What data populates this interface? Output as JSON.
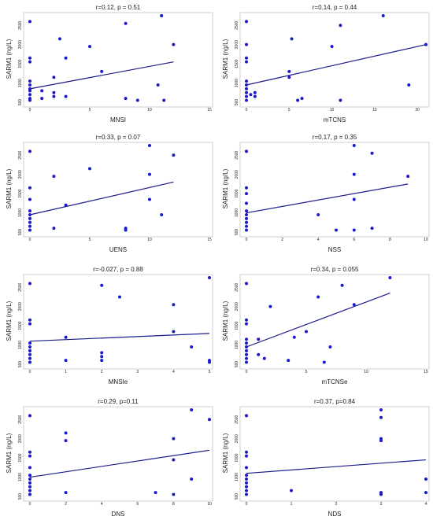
{
  "colors": {
    "points": "#1a1acc",
    "fit_line": "#1a1a8c",
    "axis": "#cfcfcf",
    "text": "#222222"
  },
  "chart_data": [
    {
      "type": "scatter",
      "title": "r=0.12, p = 0.51",
      "xlabel": "MNSI",
      "ylabel": "SARM1 (ng/L)",
      "xlim": [
        0,
        15
      ],
      "ylim": [
        500,
        2750
      ],
      "xticks": [
        0,
        5,
        10,
        15
      ],
      "yticks": [
        500,
        1000,
        1500,
        2000,
        2500
      ],
      "points": [
        [
          0,
          2600
        ],
        [
          0,
          1650
        ],
        [
          0,
          1550
        ],
        [
          0,
          1050
        ],
        [
          0,
          950
        ],
        [
          0,
          850
        ],
        [
          0,
          800
        ],
        [
          0,
          700
        ],
        [
          0,
          600
        ],
        [
          0,
          550
        ],
        [
          1,
          800
        ],
        [
          1,
          600
        ],
        [
          2,
          750
        ],
        [
          2,
          1150
        ],
        [
          2,
          650
        ],
        [
          2.5,
          2150
        ],
        [
          3,
          1650
        ],
        [
          3,
          650
        ],
        [
          5,
          1950
        ],
        [
          6,
          1300
        ],
        [
          8,
          2550
        ],
        [
          8,
          600
        ],
        [
          9,
          550
        ],
        [
          10.7,
          950
        ],
        [
          11,
          2750
        ],
        [
          11.2,
          550
        ],
        [
          12,
          2000
        ]
      ],
      "fit": [
        [
          0,
          850
        ],
        [
          12,
          1550
        ]
      ]
    },
    {
      "type": "scatter",
      "title": "r=0.14, p = 0.44",
      "xlabel": "mTCNS",
      "ylabel": "SARM1 (ng/L)",
      "xlim": [
        0,
        21
      ],
      "ylim": [
        500,
        2750
      ],
      "xticks": [
        0,
        5,
        10,
        15,
        20
      ],
      "yticks": [
        500,
        1000,
        1500,
        2000,
        2500
      ],
      "points": [
        [
          0,
          2600
        ],
        [
          0,
          2000
        ],
        [
          0,
          1650
        ],
        [
          0,
          1550
        ],
        [
          0,
          1050
        ],
        [
          0,
          950
        ],
        [
          0,
          850
        ],
        [
          0,
          750
        ],
        [
          0,
          650
        ],
        [
          0,
          550
        ],
        [
          0.5,
          700
        ],
        [
          1,
          650
        ],
        [
          1,
          750
        ],
        [
          5,
          1300
        ],
        [
          5,
          1150
        ],
        [
          5.3,
          2150
        ],
        [
          6,
          550
        ],
        [
          6.5,
          600
        ],
        [
          10,
          1950
        ],
        [
          11,
          2500
        ],
        [
          11,
          550
        ],
        [
          16,
          2750
        ],
        [
          19,
          950
        ],
        [
          21,
          2000
        ]
      ],
      "fit": [
        [
          0,
          950
        ],
        [
          21,
          2000
        ]
      ]
    },
    {
      "type": "scatter",
      "title": "r=0.33, p = 0.07",
      "xlabel": "UENS",
      "ylabel": "SARM1 (ng/L)",
      "xlim": [
        0,
        15
      ],
      "ylim": [
        500,
        2750
      ],
      "xticks": [
        0,
        5,
        10,
        15
      ],
      "yticks": [
        500,
        1000,
        1500,
        2000,
        2500
      ],
      "points": [
        [
          0,
          2600
        ],
        [
          0,
          1650
        ],
        [
          0,
          1350
        ],
        [
          0,
          1050
        ],
        [
          0,
          950
        ],
        [
          0,
          850
        ],
        [
          0,
          750
        ],
        [
          0,
          650
        ],
        [
          0,
          550
        ],
        [
          2,
          1950
        ],
        [
          2,
          600
        ],
        [
          3,
          1200
        ],
        [
          5,
          2150
        ],
        [
          8,
          550
        ],
        [
          8,
          600
        ],
        [
          10,
          2750
        ],
        [
          10,
          2000
        ],
        [
          10,
          1350
        ],
        [
          11,
          950
        ],
        [
          12,
          2500
        ]
      ],
      "fit": [
        [
          0,
          950
        ],
        [
          12,
          1800
        ]
      ]
    },
    {
      "type": "scatter",
      "title": "r=0.17, p = 0.35",
      "xlabel": "NSS",
      "ylabel": "SARM1 (ng/L)",
      "xlim": [
        0,
        10
      ],
      "ylim": [
        500,
        2750
      ],
      "xticks": [
        0,
        2,
        4,
        6,
        8,
        10
      ],
      "yticks": [
        500,
        1000,
        1500,
        2000,
        2500
      ],
      "points": [
        [
          0,
          2600
        ],
        [
          0,
          1650
        ],
        [
          0,
          1500
        ],
        [
          0,
          1250
        ],
        [
          0,
          1050
        ],
        [
          0,
          950
        ],
        [
          0,
          850
        ],
        [
          0,
          750
        ],
        [
          0,
          650
        ],
        [
          0,
          550
        ],
        [
          4,
          950
        ],
        [
          5,
          550
        ],
        [
          6,
          2750
        ],
        [
          6,
          2000
        ],
        [
          6,
          1350
        ],
        [
          6,
          550
        ],
        [
          7,
          2550
        ],
        [
          7,
          600
        ],
        [
          9,
          1950
        ]
      ],
      "fit": [
        [
          0,
          1000
        ],
        [
          9,
          1750
        ]
      ]
    },
    {
      "type": "scatter",
      "title": "r=-0.027, p = 0.88",
      "xlabel": "MNSIe",
      "ylabel": "SARM1 (ng/L)",
      "xlim": [
        0,
        5
      ],
      "ylim": [
        500,
        2750
      ],
      "xticks": [
        0,
        1,
        2,
        3,
        4,
        5
      ],
      "yticks": [
        500,
        1000,
        1500,
        2000,
        2500
      ],
      "points": [
        [
          0,
          2600
        ],
        [
          0,
          1650
        ],
        [
          0,
          1550
        ],
        [
          0,
          1050
        ],
        [
          0,
          950
        ],
        [
          0,
          850
        ],
        [
          0,
          750
        ],
        [
          0,
          650
        ],
        [
          0,
          550
        ],
        [
          1,
          1200
        ],
        [
          1,
          600
        ],
        [
          2,
          2550
        ],
        [
          2,
          800
        ],
        [
          2,
          700
        ],
        [
          2,
          600
        ],
        [
          2.5,
          2250
        ],
        [
          4,
          2050
        ],
        [
          4,
          1350
        ],
        [
          4.5,
          950
        ],
        [
          5,
          2750
        ],
        [
          5,
          600
        ],
        [
          5,
          550
        ]
      ],
      "fit": [
        [
          0,
          1100
        ],
        [
          5,
          1300
        ]
      ]
    },
    {
      "type": "scatter",
      "title": "r=0.34, p = 0.055",
      "xlabel": "mTCNSe",
      "ylabel": "SARM1 (ng/L)",
      "xlim": [
        0,
        15
      ],
      "ylim": [
        500,
        2750
      ],
      "xticks": [
        0,
        5,
        10,
        15
      ],
      "yticks": [
        500,
        1000,
        1500,
        2000,
        2500
      ],
      "points": [
        [
          0,
          2600
        ],
        [
          0,
          1650
        ],
        [
          0,
          1550
        ],
        [
          0,
          1150
        ],
        [
          0,
          1050
        ],
        [
          0,
          950
        ],
        [
          0,
          850
        ],
        [
          0,
          750
        ],
        [
          0,
          650
        ],
        [
          0,
          550
        ],
        [
          1,
          750
        ],
        [
          1,
          1150
        ],
        [
          1.5,
          650
        ],
        [
          2,
          2000
        ],
        [
          3.5,
          600
        ],
        [
          4,
          1200
        ],
        [
          5,
          1350
        ],
        [
          6,
          2250
        ],
        [
          6.5,
          550
        ],
        [
          7,
          950
        ],
        [
          8,
          2550
        ],
        [
          9,
          2050
        ],
        [
          12,
          2750
        ]
      ],
      "fit": [
        [
          0,
          950
        ],
        [
          12,
          2350
        ]
      ]
    },
    {
      "type": "scatter",
      "title": "r=0.29, p=0.11",
      "xlabel": "DNS",
      "ylabel": "SARM1 (ng/L)",
      "xlim": [
        0,
        10
      ],
      "ylim": [
        500,
        2750
      ],
      "xticks": [
        0,
        2,
        4,
        6,
        8,
        10
      ],
      "yticks": [
        500,
        1000,
        1500,
        2000,
        2500
      ],
      "points": [
        [
          0,
          2600
        ],
        [
          0,
          1650
        ],
        [
          0,
          1550
        ],
        [
          0,
          1250
        ],
        [
          0,
          1050
        ],
        [
          0,
          950
        ],
        [
          0,
          850
        ],
        [
          0,
          750
        ],
        [
          0,
          650
        ],
        [
          0,
          550
        ],
        [
          2,
          2150
        ],
        [
          2,
          1950
        ],
        [
          2,
          600
        ],
        [
          7,
          600
        ],
        [
          8,
          2000
        ],
        [
          8,
          1450
        ],
        [
          8,
          550
        ],
        [
          9,
          2750
        ],
        [
          9,
          950
        ],
        [
          10,
          2500
        ]
      ],
      "fit": [
        [
          0,
          1000
        ],
        [
          10,
          1700
        ]
      ]
    },
    {
      "type": "scatter",
      "title": "r=0.37, p=0.84",
      "xlabel": "NDS",
      "ylabel": "SARM1 (ng/L)",
      "xlim": [
        0,
        4
      ],
      "ylim": [
        500,
        2750
      ],
      "xticks": [
        0,
        1,
        2,
        3,
        4
      ],
      "yticks": [
        500,
        1000,
        1500,
        2000,
        2500
      ],
      "points": [
        [
          0,
          2600
        ],
        [
          0,
          1650
        ],
        [
          0,
          1550
        ],
        [
          0,
          1250
        ],
        [
          0,
          1050
        ],
        [
          0,
          950
        ],
        [
          0,
          850
        ],
        [
          0,
          750
        ],
        [
          0,
          650
        ],
        [
          0,
          550
        ],
        [
          1,
          650
        ],
        [
          3,
          2750
        ],
        [
          3,
          2550
        ],
        [
          3,
          2000
        ],
        [
          3,
          1950
        ],
        [
          3,
          600
        ],
        [
          3,
          550
        ],
        [
          4,
          950
        ],
        [
          4,
          600
        ]
      ],
      "fit": [
        [
          0,
          1100
        ],
        [
          4,
          1450
        ]
      ]
    }
  ]
}
